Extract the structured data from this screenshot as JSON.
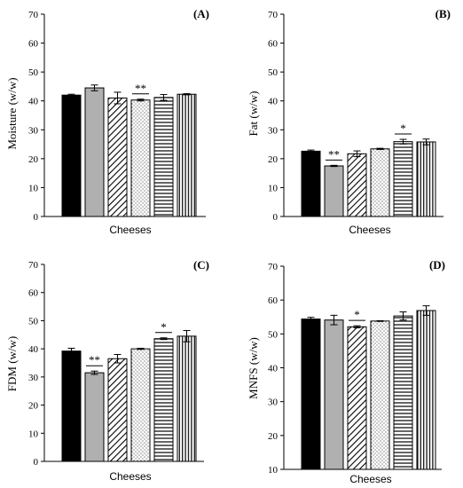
{
  "colors": {
    "axis": "#000000",
    "gray_bar": "#b0b0b0",
    "background": "#ffffff"
  },
  "bar_patterns": [
    "solid-black",
    "solid-gray",
    "diagonal-hatch",
    "dots",
    "horizontal-lines",
    "vertical-lines"
  ],
  "chart_data": [
    {
      "type": "bar",
      "panel_label": "(A)",
      "xlabel": "Cheeses",
      "ylabel": "Moisture (w/w)",
      "ylim": [
        0,
        70
      ],
      "yticks": [
        0,
        10,
        20,
        30,
        40,
        50,
        60,
        70
      ],
      "values": [
        42,
        44.5,
        41,
        40.3,
        41.2,
        42.3
      ],
      "errors": [
        0.3,
        1,
        2,
        0.3,
        1,
        0.2
      ],
      "significance": [
        {
          "bar": 3,
          "text": "**"
        }
      ]
    },
    {
      "type": "bar",
      "panel_label": "(B)",
      "xlabel": "Cheeses",
      "ylabel": "Fat (w/w)",
      "ylim": [
        0,
        70
      ],
      "yticks": [
        0,
        10,
        20,
        30,
        40,
        50,
        60,
        70
      ],
      "values": [
        22.6,
        17.5,
        21.7,
        23.4,
        25.9,
        25.8
      ],
      "errors": [
        0.4,
        0.2,
        1,
        0.2,
        0.8,
        1
      ],
      "significance": [
        {
          "bar": 1,
          "text": "**"
        },
        {
          "bar": 4,
          "text": "*"
        }
      ]
    },
    {
      "type": "bar",
      "panel_label": "(C)",
      "xlabel": "Cheeses",
      "ylabel": "FDM (w/w)",
      "ylim": [
        0,
        70
      ],
      "yticks": [
        0,
        10,
        20,
        30,
        40,
        50,
        60,
        70
      ],
      "values": [
        39.2,
        31.5,
        36.5,
        40,
        43.6,
        44.5
      ],
      "errors": [
        1,
        0.6,
        1.5,
        0.2,
        0.3,
        2
      ],
      "significance": [
        {
          "bar": 1,
          "text": "**"
        },
        {
          "bar": 4,
          "text": "*"
        }
      ]
    },
    {
      "type": "bar",
      "panel_label": "(D)",
      "xlabel": "Cheeses",
      "ylabel": "MNFS (w/w)",
      "ylim": [
        10,
        70
      ],
      "yticks": [
        10,
        20,
        30,
        40,
        50,
        60,
        70
      ],
      "values": [
        54.4,
        54.1,
        52.1,
        53.8,
        55.3,
        56.9
      ],
      "errors": [
        0.5,
        1.4,
        0.3,
        0.1,
        1.2,
        1.4
      ],
      "significance": [
        {
          "bar": 2,
          "text": "*"
        }
      ]
    }
  ]
}
